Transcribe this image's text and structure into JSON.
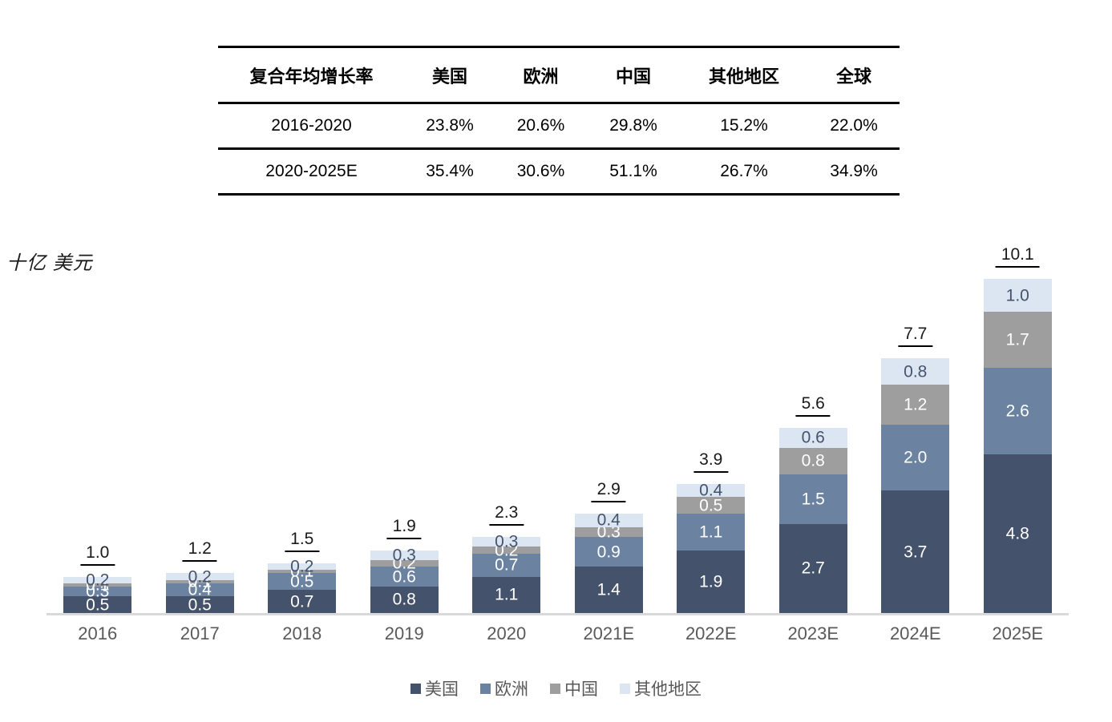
{
  "table": {
    "header": [
      "复合年均增长率",
      "美国",
      "欧洲",
      "中国",
      "其他地区",
      "全球"
    ],
    "rows": [
      [
        "2016-2020",
        "23.8%",
        "20.6%",
        "29.8%",
        "15.2%",
        "22.0%"
      ],
      [
        "2020-2025E",
        "35.4%",
        "30.6%",
        "51.1%",
        "26.7%",
        "34.9%"
      ]
    ]
  },
  "chart_data": {
    "type": "bar",
    "stacked": true,
    "unit_label": "十亿 美元",
    "categories": [
      "2016",
      "2017",
      "2018",
      "2019",
      "2020",
      "2021E",
      "2022E",
      "2023E",
      "2024E",
      "2025E"
    ],
    "series": [
      {
        "name": "美国",
        "color": "#44526B",
        "text_color": "#ffffff",
        "values": [
          0.5,
          0.5,
          0.7,
          0.8,
          1.1,
          1.4,
          1.9,
          2.7,
          3.7,
          4.8
        ]
      },
      {
        "name": "欧洲",
        "color": "#6B83A1",
        "text_color": "#ffffff",
        "values": [
          0.3,
          0.4,
          0.5,
          0.6,
          0.7,
          0.9,
          1.1,
          1.5,
          2.0,
          2.6
        ]
      },
      {
        "name": "中国",
        "color": "#9E9E9E",
        "text_color": "#ffffff",
        "values": [
          0.1,
          0.1,
          0.1,
          0.2,
          0.2,
          0.3,
          0.5,
          0.8,
          1.2,
          1.7
        ]
      },
      {
        "name": "其他地区",
        "color": "#DCE6F3",
        "text_color": "#44546A",
        "values": [
          0.2,
          0.2,
          0.2,
          0.3,
          0.3,
          0.4,
          0.4,
          0.6,
          0.8,
          1.0
        ]
      }
    ],
    "totals": [
      1.0,
      1.2,
      1.5,
      1.9,
      2.3,
      2.9,
      3.9,
      5.6,
      7.7,
      10.1
    ],
    "legend": [
      "美国",
      "欧洲",
      "中国",
      "其他地区"
    ],
    "legend_position": "bottom",
    "ylabel": "十亿 美元",
    "grid": false,
    "axis_line_color": "#d9d9d9"
  }
}
